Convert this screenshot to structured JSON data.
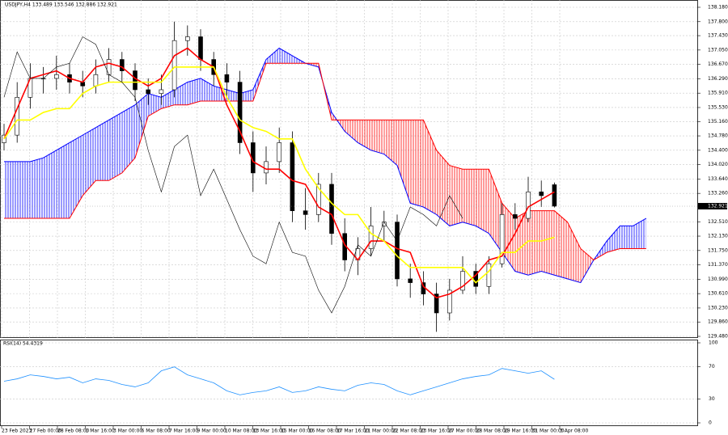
{
  "chart_data": [
    {
      "type": "candlestick",
      "title": "USDJPY,H4 133.489 133.546 132.886 132.921",
      "open": [
        134.6,
        134.8,
        135.8,
        136.3,
        136.3,
        136.4,
        136.2,
        136.1,
        136.4,
        136.8,
        136.5,
        136.0,
        135.9,
        136.0,
        137.3,
        137.4,
        136.8,
        136.4,
        136.2,
        134.6,
        133.8,
        134.1,
        134.6,
        132.8,
        132.7,
        133.5,
        132.2,
        131.5,
        131.8,
        132.4,
        132.5,
        131.0,
        130.9,
        130.6,
        130.1,
        130.7,
        131.2,
        130.8,
        131.4,
        132.7,
        132.6,
        133.3,
        133.489
      ],
      "high": [
        135.1,
        136.2,
        136.7,
        136.6,
        136.9,
        136.7,
        136.5,
        136.8,
        137.1,
        137.0,
        136.7,
        136.3,
        136.4,
        137.8,
        137.7,
        137.6,
        137.0,
        136.7,
        136.5,
        134.9,
        134.5,
        135.0,
        134.9,
        133.4,
        133.8,
        133.8,
        132.6,
        132.1,
        132.9,
        132.8,
        132.7,
        131.4,
        131.2,
        130.9,
        131.0,
        131.6,
        131.4,
        131.6,
        133.0,
        133.0,
        133.7,
        133.6,
        133.546
      ],
      "low": [
        134.4,
        134.6,
        135.5,
        135.9,
        136.0,
        135.9,
        135.8,
        135.9,
        136.2,
        136.2,
        135.7,
        135.6,
        135.6,
        135.8,
        136.9,
        136.5,
        136.1,
        135.8,
        134.3,
        133.3,
        133.5,
        133.8,
        132.5,
        132.3,
        132.5,
        131.9,
        131.2,
        131.1,
        131.6,
        132.0,
        130.8,
        130.5,
        130.3,
        129.6,
        129.9,
        130.6,
        130.6,
        130.6,
        131.3,
        132.3,
        132.5,
        132.9,
        132.886
      ],
      "close": [
        134.8,
        135.8,
        136.3,
        136.3,
        136.4,
        136.2,
        136.1,
        136.4,
        136.8,
        136.5,
        136.0,
        135.9,
        136.0,
        137.3,
        137.4,
        136.8,
        136.4,
        136.2,
        134.6,
        133.8,
        134.1,
        134.6,
        132.8,
        132.7,
        133.5,
        132.2,
        131.5,
        131.8,
        132.4,
        132.5,
        131.0,
        130.9,
        130.6,
        130.1,
        130.7,
        131.2,
        130.8,
        131.4,
        132.7,
        132.6,
        133.3,
        133.2,
        132.921
      ],
      "candle_color": "#000000",
      "lines": [
        {
          "color": "#ff0000",
          "values": [
            134.7,
            135.5,
            136.3,
            136.4,
            136.5,
            136.3,
            136.2,
            136.6,
            136.7,
            136.6,
            136.3,
            136.1,
            136.3,
            136.9,
            137.1,
            136.8,
            136.6,
            135.6,
            134.9,
            134.1,
            133.9,
            133.9,
            133.6,
            133.5,
            132.9,
            132.7,
            131.9,
            131.5,
            132.0,
            132.0,
            131.8,
            131.7,
            130.8,
            130.5,
            130.6,
            130.8,
            131.1,
            131.5,
            131.6,
            132.2,
            132.9,
            133.1,
            133.3
          ]
        },
        {
          "color": "#ffff00",
          "values": [
            134.7,
            135.2,
            135.2,
            135.4,
            135.5,
            135.5,
            135.9,
            136.1,
            136.2,
            136.2,
            136.2,
            136.2,
            136.2,
            136.6,
            136.6,
            136.6,
            136.6,
            135.8,
            135.2,
            135.0,
            134.9,
            134.7,
            134.7,
            133.9,
            133.4,
            133.0,
            132.7,
            132.7,
            132.2,
            132.0,
            131.6,
            131.3,
            131.3,
            131.3,
            131.3,
            131.3,
            130.9,
            131.2,
            131.7,
            131.7,
            132.0,
            132.0,
            132.1
          ]
        },
        {
          "color": "#000000",
          "values": [
            135.8,
            137.0,
            136.3,
            136.3,
            136.6,
            136.7,
            137.4,
            137.2,
            136.4,
            136.2,
            135.8,
            134.4,
            133.3,
            134.5,
            134.8,
            133.2,
            133.9,
            133.1,
            132.3,
            131.6,
            131.4,
            132.5,
            131.7,
            131.6,
            130.7,
            130.1,
            130.8,
            131.9,
            131.6,
            132.5,
            132.0,
            132.9,
            132.7,
            132.4,
            133.2,
            132.6
          ]
        }
      ],
      "cloud": {
        "span_a_color": "#0000ff",
        "span_b_color": "#ff0000",
        "span_a": [
          134.1,
          134.1,
          134.1,
          134.2,
          134.4,
          134.6,
          134.8,
          135.0,
          135.2,
          135.4,
          135.6,
          135.9,
          135.8,
          136.0,
          136.2,
          136.3,
          136.1,
          136.0,
          135.9,
          136.0,
          136.8,
          137.1,
          136.9,
          136.7,
          136.6,
          135.4,
          134.9,
          134.6,
          134.4,
          134.3,
          134.0,
          133.0,
          132.9,
          132.7,
          132.4,
          132.5,
          132.4,
          132.2,
          131.7,
          131.2,
          131.1,
          131.2,
          131.1,
          131.0,
          130.9,
          131.5,
          132.0,
          132.4,
          132.4,
          132.6
        ],
        "span_b": [
          132.6,
          132.6,
          132.6,
          132.6,
          132.6,
          132.6,
          133.2,
          133.6,
          133.6,
          133.8,
          134.2,
          135.3,
          135.5,
          135.6,
          135.6,
          135.7,
          135.7,
          135.7,
          135.7,
          135.7,
          136.7,
          136.7,
          136.7,
          136.7,
          136.7,
          135.2,
          135.2,
          135.2,
          135.2,
          135.2,
          135.2,
          135.2,
          135.2,
          134.4,
          134.0,
          133.9,
          133.9,
          133.9,
          133.0,
          132.6,
          132.8,
          132.8,
          132.8,
          132.5,
          131.8,
          131.5,
          131.7,
          131.8,
          131.8,
          131.8
        ]
      },
      "last_price": 132.921,
      "ylim": [
        129.48,
        138.18
      ],
      "yticks": [
        {
          "value": 138.18,
          "label": "138.180"
        },
        {
          "value": 137.8,
          "label": "137.800"
        },
        {
          "value": 137.43,
          "label": "137.430"
        },
        {
          "value": 137.05,
          "label": "137.050"
        },
        {
          "value": 136.67,
          "label": "136.670"
        },
        {
          "value": 136.29,
          "label": "136.290"
        },
        {
          "value": 135.91,
          "label": "135.910"
        },
        {
          "value": 135.53,
          "label": "135.530"
        },
        {
          "value": 135.16,
          "label": "135.160"
        },
        {
          "value": 134.78,
          "label": "134.780"
        },
        {
          "value": 134.4,
          "label": "134.400"
        },
        {
          "value": 134.02,
          "label": "134.020"
        },
        {
          "value": 133.64,
          "label": "133.640"
        },
        {
          "value": 133.26,
          "label": "133.260"
        },
        {
          "value": 132.51,
          "label": "132.510"
        },
        {
          "value": 132.13,
          "label": "132.130"
        },
        {
          "value": 131.75,
          "label": "131.750"
        },
        {
          "value": 131.37,
          "label": "131.370"
        },
        {
          "value": 130.99,
          "label": "130.990"
        },
        {
          "value": 130.61,
          "label": "130.610"
        },
        {
          "value": 130.23,
          "label": "130.230"
        },
        {
          "value": 129.86,
          "label": "129.860"
        },
        {
          "value": 129.48,
          "label": "129.480"
        }
      ],
      "xtick_labels": [
        "23 Feb 2023",
        "27 Feb 00:00",
        "28 Feb 08:00",
        "1 Mar 16:00",
        "3 Mar 00:00",
        "6 Mar 08:00",
        "7 Mar 16:00",
        "9 Mar 00:00",
        "10 Mar 08:00",
        "13 Mar 16:00",
        "15 Mar 00:00",
        "16 Mar 08:00",
        "17 Mar 16:00",
        "21 Mar 00:00",
        "22 Mar 08:00",
        "23 Mar 16:00",
        "27 Mar 00:00",
        "28 Mar 08:00",
        "29 Mar 16:00",
        "31 Mar 00:00",
        "3 Apr 08:00"
      ],
      "grid": true
    },
    {
      "type": "line",
      "title": "RSI(14) 54.4319",
      "color": "#1e90ff",
      "values": [
        52,
        55,
        60,
        58,
        55,
        57,
        50,
        55,
        53,
        48,
        45,
        50,
        65,
        70,
        60,
        55,
        50,
        40,
        35,
        38,
        40,
        45,
        38,
        40,
        45,
        42,
        40,
        47,
        50,
        48,
        40,
        35,
        40,
        45,
        50,
        55,
        58,
        60,
        68,
        65,
        62,
        65,
        54.4319
      ],
      "ylim": [
        0,
        100
      ],
      "yticks": [
        100,
        70,
        30,
        0
      ],
      "grid": true
    }
  ]
}
